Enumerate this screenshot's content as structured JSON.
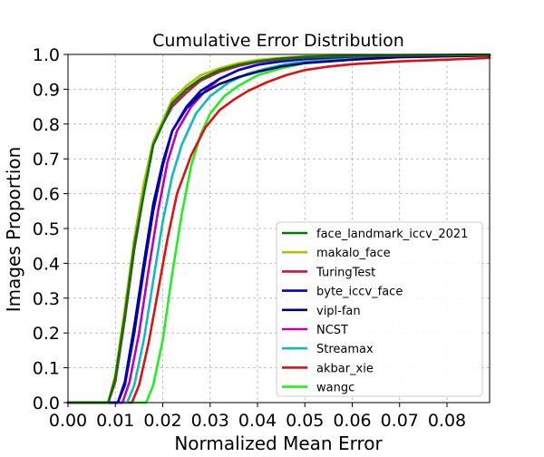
{
  "chart_data": {
    "type": "line",
    "title": "Cumulative Error Distribution",
    "xlabel": "Normalized Mean Error",
    "ylabel": "Images Proportion",
    "xlim": [
      0.0,
      0.089
    ],
    "ylim": [
      0.0,
      1.0
    ],
    "xticks": [
      "0.00",
      "0.01",
      "0.02",
      "0.03",
      "0.04",
      "0.05",
      "0.06",
      "0.07",
      "0.08"
    ],
    "yticks": [
      "0.0",
      "0.1",
      "0.2",
      "0.3",
      "0.4",
      "0.5",
      "0.6",
      "0.7",
      "0.8",
      "0.9",
      "1.0"
    ],
    "grid": true,
    "legend_position": "lower-right",
    "series": [
      {
        "name": "face_landmark_iccv_2021",
        "color": "#007700",
        "x": [
          0,
          0.0085,
          0.01,
          0.012,
          0.014,
          0.016,
          0.018,
          0.02,
          0.022,
          0.025,
          0.028,
          0.032,
          0.036,
          0.04,
          0.045,
          0.05,
          0.06,
          0.07,
          0.089
        ],
        "y": [
          0,
          0.0,
          0.07,
          0.25,
          0.45,
          0.6,
          0.74,
          0.8,
          0.86,
          0.9,
          0.93,
          0.955,
          0.97,
          0.98,
          0.988,
          0.993,
          0.996,
          0.998,
          0.999
        ]
      },
      {
        "name": "makalo_face",
        "color": "#bbbb00",
        "x": [
          0,
          0.0085,
          0.01,
          0.012,
          0.014,
          0.016,
          0.018,
          0.02,
          0.022,
          0.025,
          0.028,
          0.032,
          0.036,
          0.04,
          0.045,
          0.05,
          0.06,
          0.07,
          0.089
        ],
        "y": [
          0,
          0.0,
          0.08,
          0.27,
          0.47,
          0.63,
          0.75,
          0.81,
          0.87,
          0.91,
          0.94,
          0.96,
          0.975,
          0.984,
          0.99,
          0.994,
          0.997,
          0.998,
          0.999
        ]
      },
      {
        "name": "TuringTest",
        "color": "#cc1144",
        "x": [
          0,
          0.0085,
          0.01,
          0.012,
          0.014,
          0.016,
          0.018,
          0.02,
          0.022,
          0.025,
          0.028,
          0.032,
          0.036,
          0.04,
          0.045,
          0.05,
          0.06,
          0.07,
          0.089
        ],
        "y": [
          0,
          0.0,
          0.06,
          0.24,
          0.44,
          0.6,
          0.74,
          0.8,
          0.85,
          0.89,
          0.925,
          0.95,
          0.967,
          0.978,
          0.986,
          0.991,
          0.995,
          0.997,
          0.999
        ]
      },
      {
        "name": "byte_iccv_face",
        "color": "#0000cc",
        "x": [
          0,
          0.0105,
          0.012,
          0.014,
          0.016,
          0.018,
          0.02,
          0.022,
          0.025,
          0.028,
          0.032,
          0.036,
          0.04,
          0.045,
          0.05,
          0.06,
          0.07,
          0.089
        ],
        "y": [
          0,
          0.0,
          0.05,
          0.2,
          0.38,
          0.55,
          0.68,
          0.78,
          0.85,
          0.895,
          0.93,
          0.955,
          0.97,
          0.98,
          0.987,
          0.994,
          0.997,
          0.999
        ]
      },
      {
        "name": "vipl-fan",
        "color": "#000077",
        "x": [
          0,
          0.0105,
          0.012,
          0.014,
          0.016,
          0.018,
          0.02,
          0.022,
          0.025,
          0.028,
          0.032,
          0.036,
          0.04,
          0.045,
          0.05,
          0.06,
          0.07,
          0.089
        ],
        "y": [
          0,
          0.0,
          0.06,
          0.22,
          0.4,
          0.57,
          0.69,
          0.78,
          0.845,
          0.885,
          0.915,
          0.935,
          0.95,
          0.965,
          0.975,
          0.985,
          0.992,
          0.997
        ]
      },
      {
        "name": "NCST",
        "color": "#bb00bb",
        "x": [
          0,
          0.0115,
          0.013,
          0.015,
          0.017,
          0.019,
          0.021,
          0.023,
          0.026,
          0.029,
          0.032,
          0.036,
          0.04,
          0.045,
          0.05,
          0.06,
          0.07,
          0.089
        ],
        "y": [
          0,
          0.0,
          0.06,
          0.2,
          0.38,
          0.55,
          0.69,
          0.78,
          0.85,
          0.895,
          0.93,
          0.955,
          0.97,
          0.98,
          0.987,
          0.994,
          0.997,
          0.999
        ]
      },
      {
        "name": "Streamax",
        "color": "#11bbbb",
        "x": [
          0,
          0.0125,
          0.014,
          0.016,
          0.018,
          0.02,
          0.022,
          0.024,
          0.027,
          0.03,
          0.034,
          0.038,
          0.042,
          0.046,
          0.05,
          0.06,
          0.07,
          0.089
        ],
        "y": [
          0,
          0.0,
          0.05,
          0.18,
          0.35,
          0.52,
          0.65,
          0.74,
          0.83,
          0.88,
          0.92,
          0.945,
          0.96,
          0.972,
          0.98,
          0.99,
          0.995,
          0.999
        ]
      },
      {
        "name": "akbar_xie",
        "color": "#dd1111",
        "x": [
          0,
          0.0135,
          0.015,
          0.017,
          0.019,
          0.021,
          0.023,
          0.026,
          0.029,
          0.032,
          0.035,
          0.038,
          0.042,
          0.046,
          0.05,
          0.055,
          0.06,
          0.07,
          0.08,
          0.089
        ],
        "y": [
          0,
          0.0,
          0.05,
          0.17,
          0.32,
          0.47,
          0.6,
          0.71,
          0.79,
          0.84,
          0.87,
          0.895,
          0.92,
          0.94,
          0.955,
          0.965,
          0.972,
          0.98,
          0.985,
          0.99
        ]
      },
      {
        "name": "wangc",
        "color": "#22ee22",
        "x": [
          0,
          0.0165,
          0.018,
          0.02,
          0.022,
          0.024,
          0.026,
          0.028,
          0.03,
          0.033,
          0.036,
          0.04,
          0.045,
          0.05,
          0.06,
          0.07,
          0.089
        ],
        "y": [
          0,
          0.0,
          0.05,
          0.18,
          0.37,
          0.54,
          0.68,
          0.77,
          0.83,
          0.88,
          0.91,
          0.94,
          0.96,
          0.975,
          0.988,
          0.995,
          0.999
        ]
      }
    ]
  }
}
